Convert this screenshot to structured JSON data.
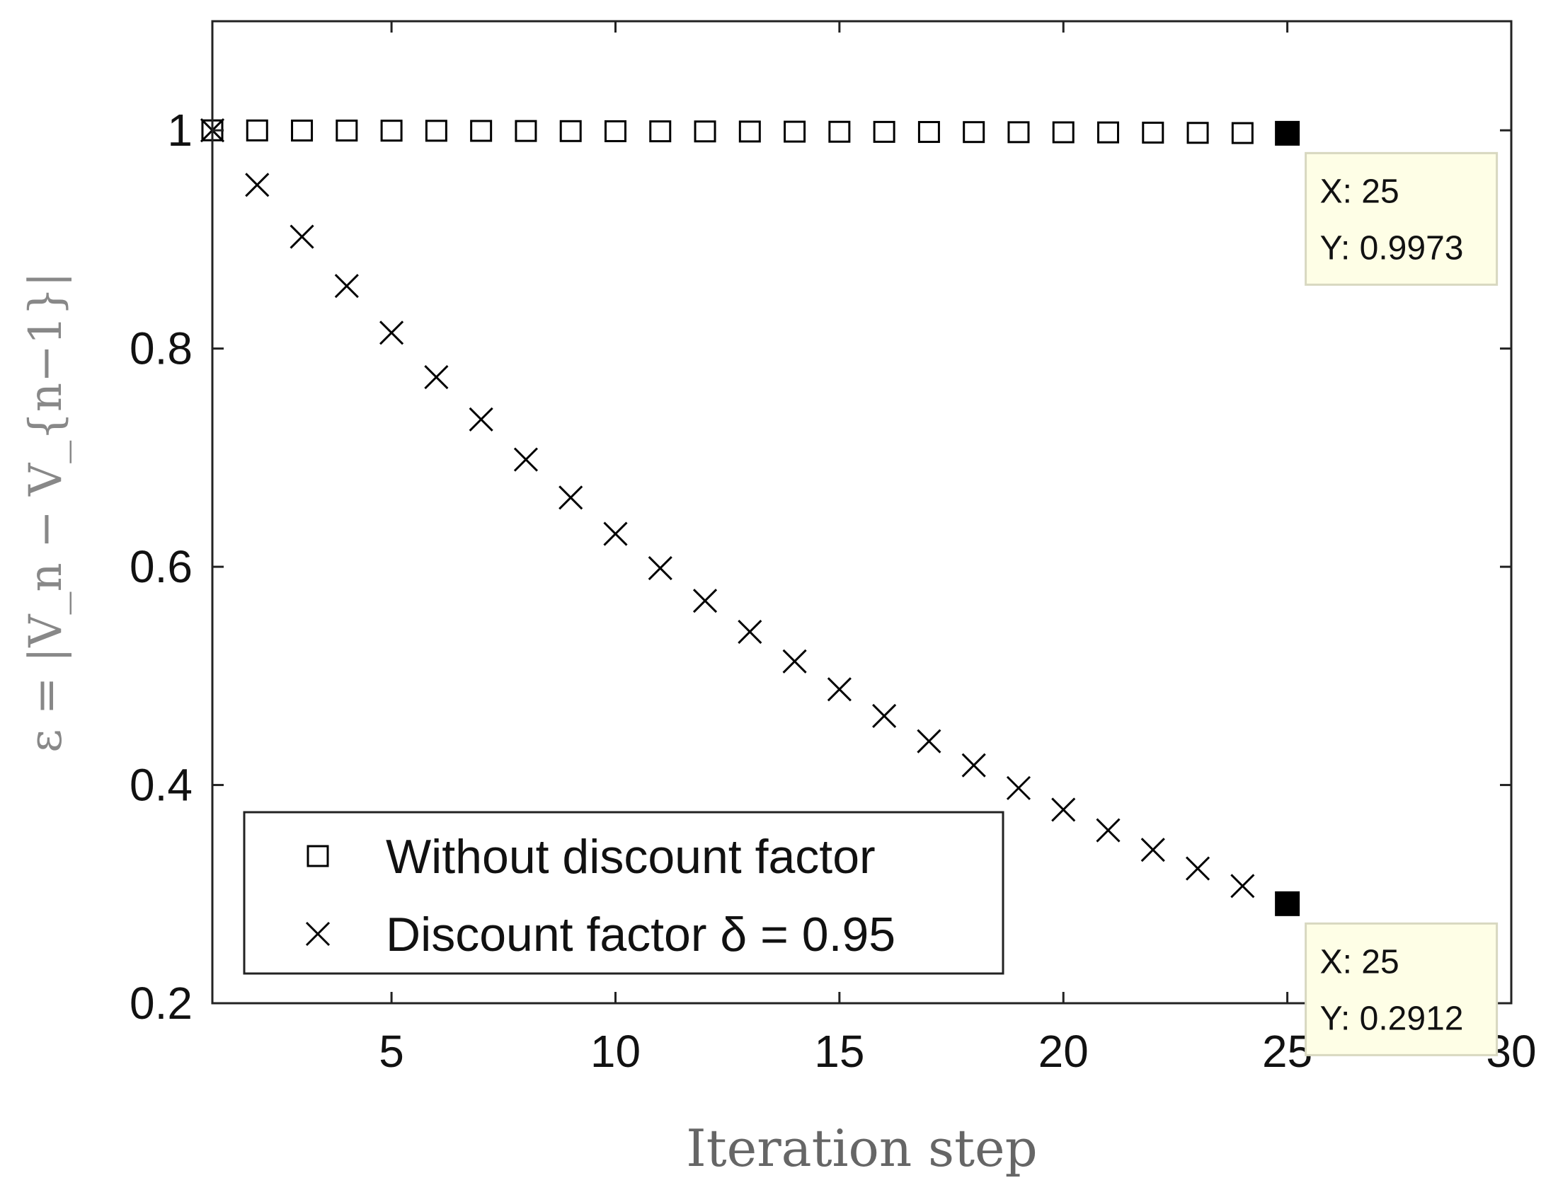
{
  "chart_data": {
    "type": "scatter",
    "xlabel": "Iteration step",
    "ylabel": "ε = |V_n − V_{n−1}|",
    "xlim": [
      1,
      30
    ],
    "ylim": [
      0.2,
      1.1
    ],
    "xticks": [
      5,
      10,
      15,
      20,
      25,
      30
    ],
    "yticks": [
      0.2,
      0.4,
      0.6,
      0.8,
      1
    ],
    "xtick_labels": [
      "5",
      "10",
      "15",
      "20",
      "25",
      "30"
    ],
    "ytick_labels": [
      "0.2",
      "0.4",
      "0.6",
      "0.8",
      "1"
    ],
    "grid": false,
    "legend_position": "bottom-left",
    "series": [
      {
        "name": "Without discount factor",
        "marker": "square",
        "x": [
          1,
          2,
          3,
          4,
          5,
          6,
          7,
          8,
          9,
          10,
          11,
          12,
          13,
          14,
          15,
          16,
          17,
          18,
          19,
          20,
          21,
          22,
          23,
          24,
          25
        ],
        "values": [
          1.0,
          0.9999,
          0.9998,
          0.9998,
          0.9997,
          0.9996,
          0.9995,
          0.9994,
          0.9993,
          0.9992,
          0.9991,
          0.999,
          0.9989,
          0.9988,
          0.9987,
          0.9986,
          0.9985,
          0.9984,
          0.9983,
          0.9982,
          0.9981,
          0.9979,
          0.9977,
          0.9975,
          0.9973
        ]
      },
      {
        "name": "Discount factor δ = 0.95",
        "marker": "x",
        "x": [
          1,
          2,
          3,
          4,
          5,
          6,
          7,
          8,
          9,
          10,
          11,
          12,
          13,
          14,
          15,
          16,
          17,
          18,
          19,
          20,
          21,
          22,
          23,
          24,
          25
        ],
        "values": [
          1.0,
          0.95,
          0.9025,
          0.8574,
          0.8145,
          0.7738,
          0.7351,
          0.6983,
          0.6634,
          0.6302,
          0.5987,
          0.5688,
          0.5404,
          0.5133,
          0.4877,
          0.4633,
          0.4401,
          0.4181,
          0.3972,
          0.3774,
          0.3585,
          0.3406,
          0.3235,
          0.3074,
          0.2912
        ]
      }
    ],
    "datatips": [
      {
        "x": 25,
        "y": 0.9973,
        "x_text": "X: 25",
        "y_text": "Y: 0.9973"
      },
      {
        "x": 25,
        "y": 0.2912,
        "x_text": "X: 25",
        "y_text": "Y: 0.2912"
      }
    ]
  }
}
